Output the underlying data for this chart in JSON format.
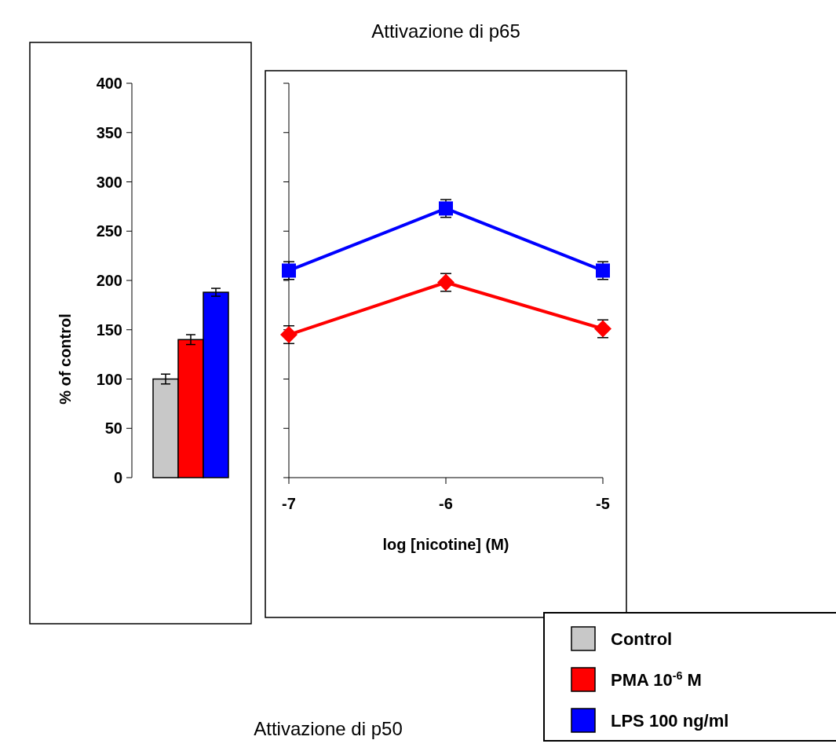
{
  "chart_data": [
    {
      "type": "bar",
      "ylabel": "% of control",
      "categories": [
        null
      ],
      "ylim": [
        0,
        400
      ],
      "yticks": [
        0,
        50,
        100,
        150,
        200,
        250,
        300,
        350,
        400
      ],
      "legend": "bottom right",
      "series": [
        {
          "name": "Control",
          "color": "#c8c8c8",
          "values": [
            100
          ],
          "errors": [
            5
          ]
        },
        {
          "name": "PMA 10$^{-6}$ M",
          "color": "#ff0000",
          "values": [
            140
          ],
          "errors": [
            5
          ]
        },
        {
          "name": "LPS 100 ng/ml",
          "color": "#0000ff",
          "values": [
            188
          ],
          "errors": [
            4
          ]
        }
      ]
    },
    {
      "type": "line",
      "title": "Attivazione di p65",
      "xlabel": "log [nicotine] (M)",
      "x": [
        -7,
        -6,
        -5
      ],
      "xlim": [
        -7,
        -5
      ],
      "xticks": [
        -7,
        -6,
        -5
      ],
      "ylim": [
        0,
        400
      ],
      "yticks": [
        {
          "value": 0,
          "label": null
        },
        {
          "value": 50,
          "label": null
        },
        {
          "value": 100,
          "label": null
        },
        {
          "value": 150,
          "label": null
        },
        {
          "value": 200,
          "label": null
        },
        {
          "value": 250,
          "label": null
        },
        {
          "value": 300,
          "label": null
        },
        {
          "value": 350,
          "label": null
        },
        {
          "value": 400,
          "label": null
        }
      ],
      "tick_labels": "x",
      "annotations": [
        "Attivazione di p50"
      ],
      "series": [
        {
          "color": "#ff0000",
          "marker": "diamond",
          "values": [
            145,
            198,
            151
          ],
          "errors": [
            9,
            9,
            9
          ]
        },
        {
          "color": "#0000ff",
          "marker": "square",
          "values": [
            210,
            273,
            210
          ],
          "errors": [
            9,
            9,
            9
          ]
        }
      ]
    }
  ]
}
